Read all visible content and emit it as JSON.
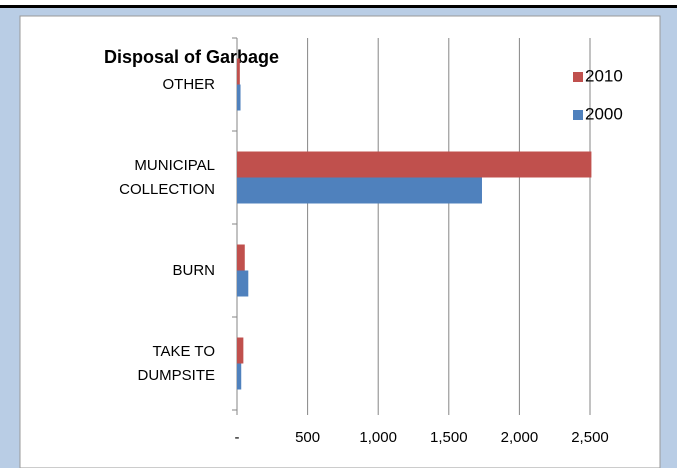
{
  "chart_data": {
    "type": "bar",
    "orientation": "horizontal",
    "title": "Disposal of Garbage",
    "categories": [
      "OTHER",
      "MUNICIPAL COLLECTION",
      "BURN",
      "TAKE TO DUMPSITE"
    ],
    "series": [
      {
        "name": "2010",
        "color": "#c0504d",
        "values": [
          20,
          2510,
          55,
          45
        ]
      },
      {
        "name": "2000",
        "color": "#4f81bd",
        "values": [
          25,
          1735,
          80,
          30
        ]
      }
    ],
    "xlim": [
      0,
      2500
    ],
    "xticks": [
      {
        "value": 0,
        "label": "-"
      },
      500,
      {
        "value": 1000,
        "label": "1,000"
      },
      {
        "value": 1500,
        "label": "1,500"
      },
      {
        "value": 2000,
        "label": "2,000"
      },
      {
        "value": 2500,
        "label": "2,500"
      }
    ],
    "grid": true,
    "legend": "upper right"
  }
}
